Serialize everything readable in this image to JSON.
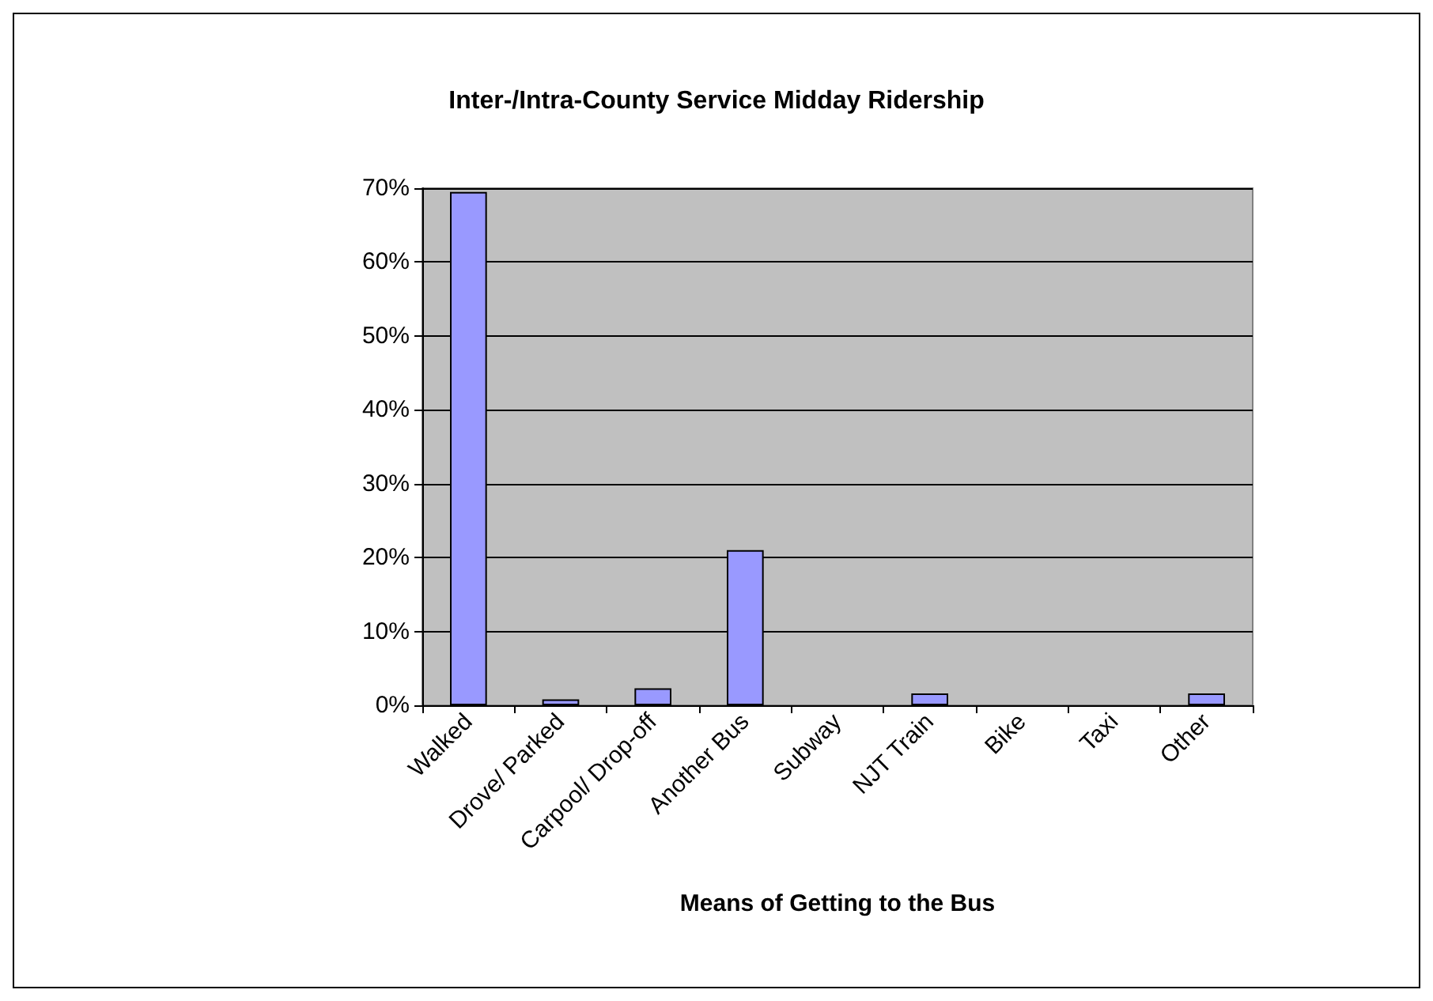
{
  "chart_data": {
    "type": "bar",
    "title": "Inter-/Intra-County Service Midday Ridership",
    "xlabel": "Means of Getting to the Bus",
    "categories": [
      "Walked",
      "Drove/ Parked",
      "Carpool/ Drop-off",
      "Another Bus",
      "Subway",
      "NJT Train",
      "Bike",
      "Taxi",
      "Other"
    ],
    "values": [
      69.5,
      0.8,
      2.3,
      21,
      0,
      1.6,
      0,
      0,
      1.6
    ],
    "color": "#9999ff",
    "ylim": [
      0,
      70
    ],
    "yticks": [
      {
        "value": 0,
        "label": "0%"
      },
      {
        "value": 10,
        "label": "10%"
      },
      {
        "value": 20,
        "label": "20%"
      },
      {
        "value": 30,
        "label": "30%"
      },
      {
        "value": 40,
        "label": "40%"
      },
      {
        "value": 50,
        "label": "50%"
      },
      {
        "value": 60,
        "label": "60%"
      },
      {
        "value": 70,
        "label": "70%"
      }
    ],
    "grid": "y"
  }
}
